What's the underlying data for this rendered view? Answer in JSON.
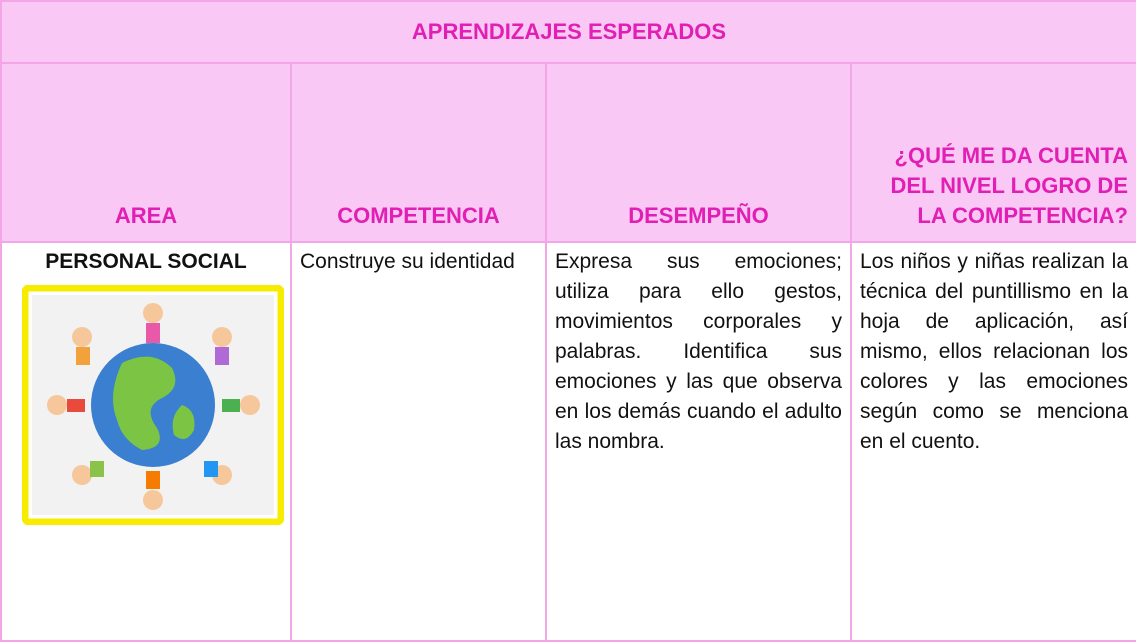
{
  "table": {
    "title": "APRENDIZAJES ESPERADOS",
    "headers": [
      "AREA",
      "COMPETENCIA",
      "DESEMPEÑO",
      "¿QUÉ ME DA CUENTA DEL NIVEL LOGRO DE LA COMPETENCIA?"
    ],
    "rows": [
      [
        "PERSONAL SOCIAL",
        "Construye su identidad",
        "Expresa sus emociones; utiliza para ello gestos, movimientos corporales y palabras. Identifica sus emociones y las que observa en los demás cuando el adulto las nombra.",
        "Los niños y niñas realizan la técnica del puntillismo en la hoja de aplicación, así mismo, ellos relacionan los colores y las emociones según como se menciona en el cuento."
      ]
    ]
  }
}
